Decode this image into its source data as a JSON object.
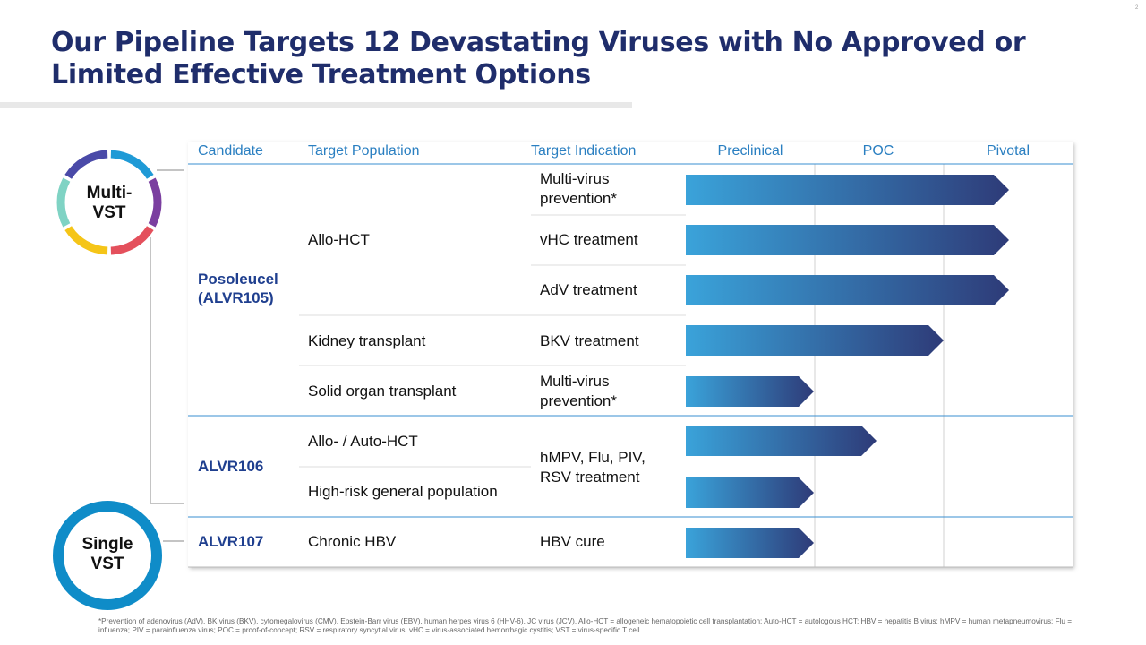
{
  "page_number": "2",
  "title": [
    "Our Pipeline Targets 12 Devastating Viruses with No Approved or",
    "Limited Effective Treatment Options"
  ],
  "badges": {
    "multi": [
      "Multi-",
      "VST"
    ],
    "single": [
      "Single",
      "VST"
    ]
  },
  "table": {
    "headers": [
      "Candidate",
      "Target Population",
      "Target Indication",
      "Preclinical",
      "POC",
      "Pivotal"
    ],
    "candidates": [
      [
        "Posoleucel",
        "(ALVR105)"
      ],
      [
        "ALVR106"
      ],
      [
        "ALVR107"
      ]
    ],
    "populations": [
      "Allo-HCT",
      "Kidney transplant",
      "Solid organ transplant",
      "Allo- / Auto-HCT",
      "High-risk general population",
      "Chronic HBV"
    ],
    "indications": [
      [
        "Multi-virus",
        "prevention*"
      ],
      [
        "vHC treatment"
      ],
      [
        "AdV treatment"
      ],
      [
        "BKV treatment"
      ],
      [
        "Multi-virus",
        "prevention*"
      ],
      [
        "hMPV, Flu, PIV,",
        "RSV treatment"
      ],
      [
        "HBV cure"
      ]
    ]
  },
  "footnote": "*Prevention of adenovirus (AdV), BK virus (BKV), cytomegalovirus (CMV), Epstein-Barr virus (EBV), human herpes virus 6 (HHV-6), JC virus (JCV). Allo-HCT = allogeneic hematopoietic cell transplantation; Auto-HCT = autologous HCT; HBV = hepatitis B virus; hMPV = human metapneumovirus; Flu = influenza; PIV = parainfluenza virus; POC = proof-of-concept; RSV = respiratory syncytial virus; vHC = virus-associated hemorrhagic cystitis; VST = virus-specific T cell."
}
